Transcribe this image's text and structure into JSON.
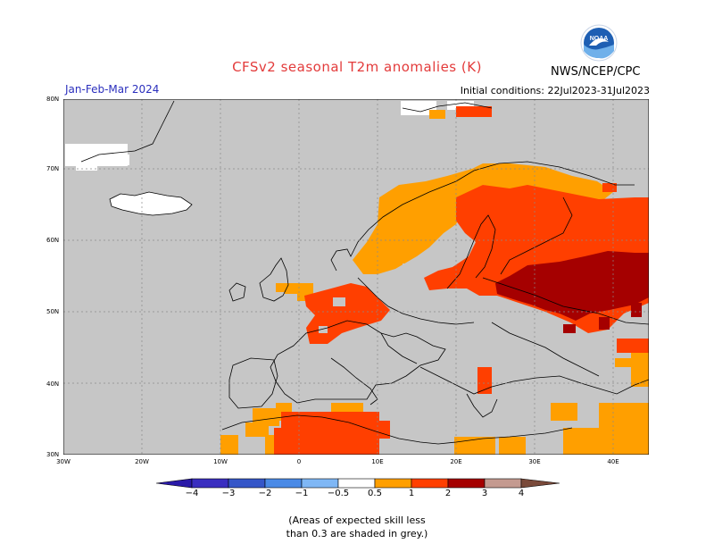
{
  "header": {
    "title": "CFSv2 seasonal T2m anomalies (K)",
    "agency": "NWS/NCEP/CPC",
    "period": "Jan-Feb-Mar 2024",
    "initial_conditions": "Initial conditions: 22Jul2023-31Jul2023",
    "logo_text": "NOAA"
  },
  "map": {
    "lat_labels": [
      "80N",
      "70N",
      "60N",
      "50N",
      "40N",
      "30N"
    ],
    "lon_labels": [
      "30W",
      "20W",
      "10W",
      "0",
      "10E",
      "20E",
      "30E",
      "40E"
    ],
    "colors": {
      "ocean_land_grey": "#c6c6c6",
      "ice_white": "#ffffff",
      "anom_0_5_1": "#ff9f00",
      "anom_1_2": "#ff3f00",
      "anom_2_3": "#a50000",
      "grid": "#8a8a8a"
    }
  },
  "legend": {
    "labels": [
      "−4",
      "−3",
      "−2",
      "−1",
      "−0.5",
      "0.5",
      "1",
      "2",
      "3",
      "4"
    ],
    "colors": [
      "#2a1aa8",
      "#3556c8",
      "#4a8ae6",
      "#7fb7f5",
      "#ffffff",
      "#ff9f00",
      "#ff3f00",
      "#a50000",
      "#c49a90"
    ]
  },
  "note": {
    "line1": "(Areas of expected skill less",
    "line2": "than 0.3 are shaded in grey.)"
  }
}
